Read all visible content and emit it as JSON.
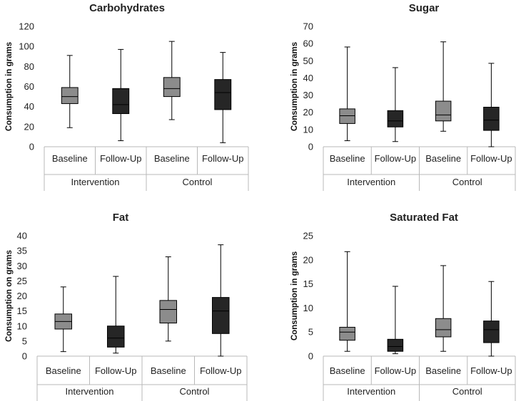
{
  "chart_data": [
    {
      "type": "boxplot",
      "title": "Carbohydrates",
      "ylabel": "Consumption in grams",
      "ylim": [
        0,
        120
      ],
      "yticks": [
        "0",
        "20",
        "40",
        "60",
        "80",
        "100",
        "120"
      ],
      "categories": [
        "Baseline",
        "Follow-Up",
        "Baseline",
        "Follow-Up"
      ],
      "groups": [
        "Intervention",
        "Control"
      ],
      "boxes": [
        {
          "min": 19,
          "q1": 43,
          "median": 50,
          "q3": 59,
          "max": 91,
          "color": "#8c8c8c"
        },
        {
          "min": 6,
          "q1": 33,
          "median": 42,
          "q3": 58,
          "max": 97,
          "color": "#262626"
        },
        {
          "min": 27,
          "q1": 50,
          "median": 58,
          "q3": 69,
          "max": 105,
          "color": "#8c8c8c"
        },
        {
          "min": 4,
          "q1": 37,
          "median": 54,
          "q3": 67,
          "max": 94,
          "color": "#262626"
        }
      ]
    },
    {
      "type": "boxplot",
      "title": "Sugar",
      "ylabel": "Consumption in grams",
      "ylim": [
        0,
        70
      ],
      "yticks": [
        "0",
        "10",
        "20",
        "30",
        "40",
        "50",
        "60",
        "70"
      ],
      "categories": [
        "Baseline",
        "Follow-Up",
        "Baseline",
        "Follow-Up"
      ],
      "groups": [
        "Intervention",
        "Control"
      ],
      "boxes": [
        {
          "min": 3.5,
          "q1": 13.5,
          "median": 18,
          "q3": 22,
          "max": 58,
          "color": "#8c8c8c"
        },
        {
          "min": 3,
          "q1": 11.5,
          "median": 15,
          "q3": 21,
          "max": 46,
          "color": "#262626"
        },
        {
          "min": 9,
          "q1": 15,
          "median": 18.5,
          "q3": 26.5,
          "max": 61,
          "color": "#8c8c8c"
        },
        {
          "min": 0,
          "q1": 9.5,
          "median": 15.5,
          "q3": 23,
          "max": 48.5,
          "color": "#262626"
        }
      ]
    },
    {
      "type": "boxplot",
      "title": "Fat",
      "ylabel": "Consumption on grams",
      "ylim": [
        0,
        40
      ],
      "yticks": [
        "0",
        "5",
        "10",
        "15",
        "20",
        "25",
        "30",
        "35",
        "40"
      ],
      "categories": [
        "Baseline",
        "Follow-Up",
        "Baseline",
        "Follow-Up"
      ],
      "groups": [
        "Intervention",
        "Control"
      ],
      "boxes": [
        {
          "min": 1.5,
          "q1": 9,
          "median": 11.5,
          "q3": 14,
          "max": 23,
          "color": "#8c8c8c"
        },
        {
          "min": 1,
          "q1": 3,
          "median": 6,
          "q3": 10,
          "max": 26.5,
          "color": "#262626"
        },
        {
          "min": 5,
          "q1": 11,
          "median": 15.5,
          "q3": 18.5,
          "max": 33,
          "color": "#8c8c8c"
        },
        {
          "min": 0,
          "q1": 7.5,
          "median": 15,
          "q3": 19.5,
          "max": 37,
          "color": "#262626"
        }
      ]
    },
    {
      "type": "boxplot",
      "title": "Saturated Fat",
      "ylabel": "Consumption in grams",
      "ylim": [
        0,
        25
      ],
      "yticks": [
        "0",
        "5",
        "10",
        "15",
        "20",
        "25"
      ],
      "categories": [
        "Baseline",
        "Follow-Up",
        "Baseline",
        "Follow-Up"
      ],
      "groups": [
        "Intervention",
        "Control"
      ],
      "boxes": [
        {
          "min": 1,
          "q1": 3.3,
          "median": 5,
          "q3": 6,
          "max": 21.7,
          "color": "#8c8c8c"
        },
        {
          "min": 0.5,
          "q1": 1,
          "median": 2,
          "q3": 3.5,
          "max": 14.5,
          "color": "#262626"
        },
        {
          "min": 1,
          "q1": 4,
          "median": 5.5,
          "q3": 7.8,
          "max": 18.8,
          "color": "#8c8c8c"
        },
        {
          "min": 0,
          "q1": 2.8,
          "median": 5.5,
          "q3": 7.3,
          "max": 15.5,
          "color": "#262626"
        }
      ]
    }
  ]
}
